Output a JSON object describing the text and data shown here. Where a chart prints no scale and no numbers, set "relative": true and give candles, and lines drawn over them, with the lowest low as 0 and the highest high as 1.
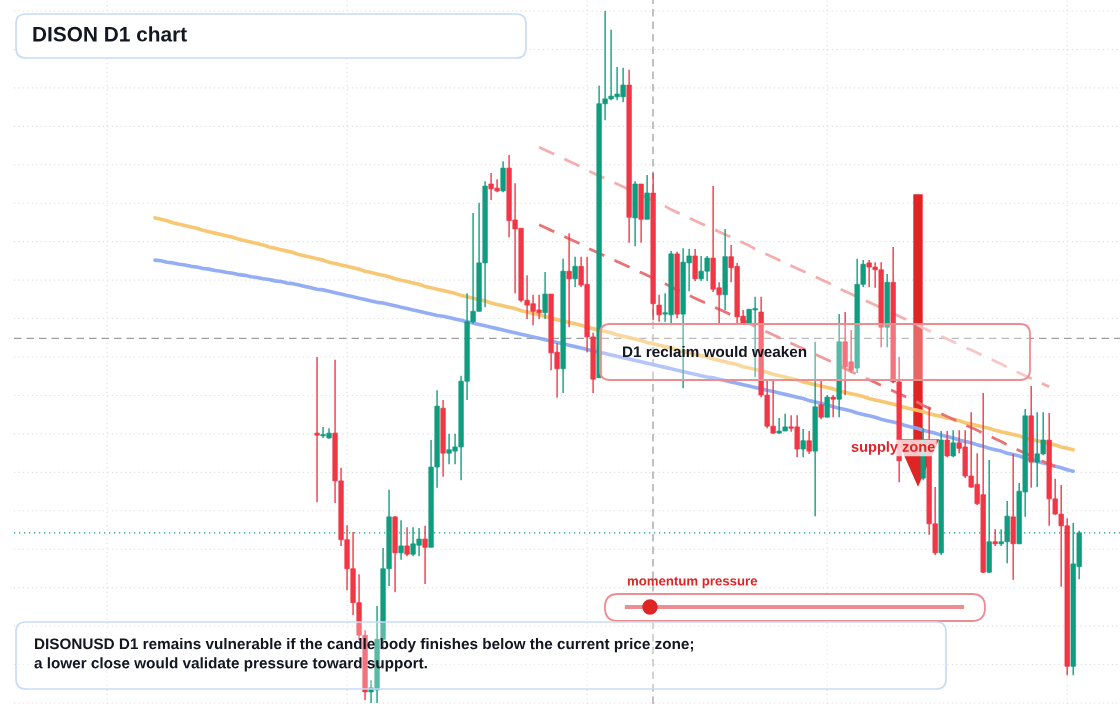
{
  "chart_data": {
    "type": "candlestick",
    "title": "DISON D1 chart",
    "relative": true,
    "grid": true,
    "categories": [
      null,
      null,
      null,
      null,
      null,
      null,
      null,
      null,
      null,
      null,
      null,
      null,
      null,
      null,
      null,
      null,
      null,
      null,
      null,
      null,
      null,
      null,
      null,
      null,
      null,
      null,
      null,
      null,
      null,
      null,
      null,
      null,
      null,
      null,
      null,
      null,
      null,
      null,
      null,
      null,
      null,
      null,
      null,
      null,
      null,
      null,
      null,
      null,
      null,
      null,
      null,
      null,
      null,
      null,
      null,
      null,
      null,
      null,
      null,
      null,
      null,
      null,
      null,
      null,
      null,
      null,
      null,
      null,
      null,
      null,
      null,
      null,
      null,
      null,
      null,
      null,
      null,
      null,
      null,
      null,
      null,
      null,
      null,
      null,
      null,
      null,
      null,
      null,
      null,
      null,
      null,
      null,
      null,
      null,
      null,
      null,
      null,
      null,
      null,
      null,
      null,
      null,
      null,
      null,
      null,
      null,
      null,
      null,
      null,
      null,
      null,
      null,
      null,
      null,
      null,
      null,
      null,
      null,
      null,
      null,
      null,
      null,
      null,
      null,
      null,
      null,
      null,
      null,
      null,
      null,
      null,
      null,
      null,
      null,
      null,
      null,
      null,
      null,
      null,
      null,
      null,
      null,
      null,
      null,
      null,
      null,
      null,
      null,
      null,
      null,
      null,
      null,
      null,
      null,
      null
    ],
    "ohlc": [
      null,
      null,
      null,
      null,
      null,
      null,
      null,
      null,
      null,
      null,
      null,
      null,
      null,
      null,
      null,
      null,
      null,
      null,
      null,
      null,
      null,
      null,
      null,
      null,
      null,
      null,
      null,
      [
        0.39,
        0.5,
        0.29,
        0.387
      ],
      [
        0.386,
        0.399,
        0.383,
        0.387
      ],
      [
        0.383,
        0.397,
        0.382,
        0.39
      ],
      [
        0.39,
        0.496,
        0.289,
        0.321
      ],
      [
        0.321,
        0.34,
        0.227,
        0.236
      ],
      [
        0.236,
        0.257,
        0.163,
        0.194
      ],
      [
        0.194,
        0.247,
        0.127,
        0.145
      ],
      [
        0.145,
        0.186,
        0.091,
        0.098
      ],
      [
        0.098,
        0.105,
        0.004,
        0.016
      ],
      [
        0.016,
        0.033,
        0.0,
        0.022
      ],
      [
        0.019,
        0.14,
        0.0,
        0.092
      ],
      [
        0.092,
        0.224,
        0.077,
        0.194
      ],
      [
        0.194,
        0.308,
        0.169,
        0.269
      ],
      [
        0.269,
        0.27,
        0.16,
        0.217
      ],
      [
        0.217,
        0.264,
        0.207,
        0.227
      ],
      [
        0.227,
        0.254,
        0.212,
        0.215
      ],
      [
        0.215,
        0.254,
        0.212,
        0.23
      ],
      [
        0.228,
        0.253,
        0.212,
        0.237
      ],
      [
        0.237,
        0.256,
        0.172,
        0.225
      ],
      [
        0.225,
        0.38,
        0.225,
        0.341
      ],
      [
        0.341,
        0.452,
        0.311,
        0.429
      ],
      [
        0.426,
        0.438,
        0.327,
        0.361
      ],
      [
        0.361,
        0.389,
        0.345,
        0.366
      ],
      [
        0.364,
        0.389,
        0.345,
        0.37
      ],
      [
        0.37,
        0.473,
        0.322,
        0.465
      ],
      [
        0.465,
        0.592,
        0.438,
        0.551
      ],
      [
        0.551,
        0.708,
        0.548,
        0.566
      ],
      [
        0.566,
        0.723,
        0.566,
        0.636
      ],
      [
        0.636,
        0.754,
        0.572,
        0.747
      ],
      [
        0.75,
        0.766,
        0.727,
        0.743
      ],
      [
        0.744,
        0.757,
        0.738,
        0.74
      ],
      [
        0.74,
        0.783,
        0.738,
        0.773
      ],
      [
        0.773,
        0.792,
        0.673,
        0.697
      ],
      [
        0.698,
        0.751,
        0.592,
        0.685
      ],
      [
        0.686,
        0.686,
        0.579,
        0.582
      ],
      [
        0.582,
        0.618,
        0.555,
        0.575
      ],
      [
        0.577,
        0.59,
        0.546,
        0.566
      ],
      [
        0.568,
        0.59,
        0.555,
        0.564
      ],
      [
        0.564,
        0.623,
        0.555,
        0.591
      ],
      [
        0.591,
        0.591,
        0.481,
        0.506
      ],
      [
        0.507,
        0.52,
        0.441,
        0.483
      ],
      [
        0.483,
        0.642,
        0.448,
        0.624
      ],
      [
        0.624,
        0.679,
        0.543,
        0.613
      ],
      [
        0.613,
        0.645,
        0.601,
        0.631
      ],
      [
        0.631,
        0.645,
        0.601,
        0.604
      ],
      [
        0.605,
        0.645,
        0.507,
        0.529
      ],
      [
        0.529,
        0.535,
        0.448,
        0.468
      ],
      [
        0.47,
        0.892,
        0.47,
        0.866
      ],
      [
        0.866,
        1.0,
        0.842,
        0.873
      ],
      [
        0.873,
        0.973,
        0.871,
        0.877
      ],
      [
        0.876,
        0.919,
        0.871,
        0.88
      ],
      [
        0.876,
        0.918,
        0.868,
        0.893
      ],
      [
        0.893,
        0.915,
        0.665,
        0.702
      ],
      [
        0.701,
        0.754,
        0.66,
        0.75
      ],
      [
        0.75,
        0.75,
        0.665,
        0.699
      ],
      [
        0.699,
        0.763,
        0.699,
        0.737
      ],
      [
        0.737,
        0.766,
        0.553,
        0.577
      ],
      [
        0.575,
        0.59,
        0.551,
        0.561
      ],
      [
        0.562,
        0.592,
        0.551,
        0.563
      ],
      [
        0.561,
        0.653,
        0.546,
        0.649
      ],
      [
        0.649,
        0.652,
        0.556,
        0.562
      ],
      [
        0.562,
        0.657,
        0.455,
        0.637
      ],
      [
        0.636,
        0.656,
        0.595,
        0.646
      ],
      [
        0.646,
        0.656,
        0.61,
        0.613
      ],
      [
        0.613,
        0.646,
        0.61,
        0.624
      ],
      [
        0.624,
        0.646,
        0.61,
        0.643
      ],
      [
        0.643,
        0.747,
        0.594,
        0.598
      ],
      [
        0.6,
        0.608,
        0.549,
        0.59
      ],
      [
        0.59,
        0.685,
        0.568,
        0.645
      ],
      [
        0.645,
        0.662,
        0.608,
        0.629
      ],
      [
        0.631,
        0.636,
        0.549,
        0.558
      ],
      [
        0.559,
        0.568,
        0.548,
        0.549
      ],
      [
        0.549,
        0.569,
        0.548,
        0.569
      ],
      [
        0.568,
        0.587,
        0.471,
        0.569
      ],
      [
        0.565,
        0.587,
        0.442,
        0.445
      ],
      [
        0.445,
        0.468,
        0.397,
        0.4
      ],
      [
        0.4,
        0.468,
        0.389,
        0.39
      ],
      [
        0.39,
        0.412,
        0.389,
        0.393
      ],
      [
        0.393,
        0.418,
        0.393,
        0.399
      ],
      [
        0.399,
        0.416,
        0.392,
        0.397
      ],
      [
        0.399,
        0.416,
        0.355,
        0.367
      ],
      [
        0.367,
        0.396,
        0.355,
        0.379
      ],
      [
        0.379,
        0.393,
        0.36,
        0.364
      ],
      [
        0.364,
        0.522,
        0.27,
        0.428
      ],
      [
        0.431,
        0.467,
        0.41,
        0.413
      ],
      [
        0.413,
        0.445,
        0.413,
        0.442
      ],
      [
        0.442,
        0.445,
        0.413,
        0.439
      ],
      [
        0.439,
        0.562,
        0.413,
        0.522
      ],
      [
        0.522,
        0.565,
        0.445,
        0.486
      ],
      [
        0.493,
        0.539,
        0.477,
        0.481
      ],
      [
        0.484,
        0.642,
        0.477,
        0.605
      ],
      [
        0.605,
        0.64,
        0.601,
        0.634
      ],
      [
        0.636,
        0.64,
        0.601,
        0.63
      ],
      [
        0.63,
        0.637,
        0.6,
        0.626
      ],
      [
        0.626,
        0.637,
        0.514,
        0.543
      ],
      [
        0.543,
        0.62,
        0.514,
        0.608
      ],
      [
        0.608,
        0.659,
        0.462,
        0.464
      ],
      [
        0.464,
        0.5,
        0.319,
        0.35
      ],
      null,
      null,
      null,
      [
        0.325,
        0.397,
        0.322,
        0.38
      ],
      [
        0.38,
        0.428,
        0.243,
        0.259
      ],
      [
        0.259,
        0.312,
        0.214,
        0.217
      ],
      [
        0.217,
        0.393,
        0.214,
        0.38
      ],
      [
        0.38,
        0.393,
        0.355,
        0.357
      ],
      [
        0.357,
        0.394,
        0.355,
        0.376
      ],
      [
        0.376,
        0.394,
        0.361,
        0.368
      ],
      [
        0.37,
        0.394,
        0.325,
        0.328
      ],
      [
        0.328,
        0.42,
        0.311,
        0.312
      ],
      [
        0.316,
        0.361,
        0.286,
        0.288
      ],
      [
        0.301,
        0.448,
        0.188,
        0.189
      ],
      [
        0.189,
        0.351,
        0.188,
        0.233
      ],
      [
        0.233,
        0.251,
        0.227,
        0.23
      ],
      [
        0.23,
        0.251,
        0.227,
        0.233
      ],
      [
        0.233,
        0.292,
        0.202,
        0.27
      ],
      [
        0.269,
        0.36,
        0.178,
        0.23
      ],
      [
        0.23,
        0.318,
        0.23,
        0.306
      ],
      [
        0.305,
        0.425,
        0.269,
        0.415
      ],
      [
        0.415,
        0.458,
        0.311,
        0.348
      ],
      [
        0.348,
        0.42,
        0.312,
        0.36
      ],
      [
        0.36,
        0.42,
        0.358,
        0.38
      ],
      [
        0.38,
        0.419,
        0.256,
        0.295
      ],
      [
        0.295,
        0.324,
        0.272,
        0.273
      ],
      [
        0.273,
        0.315,
        0.168,
        0.256
      ],
      [
        0.256,
        0.267,
        0.04,
        0.053
      ],
      [
        0.053,
        0.26,
        0.04,
        0.201
      ],
      [
        0.197,
        0.249,
        0.179,
        0.246
      ]
    ],
    "series": [
      {
        "type": "line",
        "color": "#f7c46c",
        "values": [
          0.701,
          0.699,
          0.697,
          0.694,
          0.692,
          0.69,
          0.688,
          0.686,
          0.683,
          0.681,
          0.679,
          0.677,
          0.675,
          0.673,
          0.67,
          0.668,
          0.666,
          0.664,
          0.662,
          0.659,
          0.657,
          0.655,
          0.653,
          0.651,
          0.648,
          0.646,
          0.644,
          0.642,
          0.64,
          0.637,
          0.635,
          0.633,
          0.631,
          0.629,
          0.627,
          0.624,
          0.622,
          0.62,
          0.618,
          0.616,
          0.613,
          0.611,
          0.609,
          0.607,
          0.605,
          0.602,
          0.6,
          0.598,
          0.596,
          0.594,
          0.592,
          0.589,
          0.587,
          0.585,
          0.583,
          0.581,
          0.578,
          0.576,
          0.574,
          0.572,
          0.57,
          0.567,
          0.565,
          0.563,
          0.561,
          0.559,
          0.556,
          0.554,
          0.552,
          0.55,
          0.548,
          0.546,
          0.543,
          0.541,
          0.539,
          0.537,
          0.535,
          0.532,
          0.53,
          0.528,
          0.526,
          0.524,
          0.521,
          0.519,
          0.517,
          0.515,
          0.513,
          0.51,
          0.508,
          0.506,
          0.504,
          0.502,
          0.5,
          0.497,
          0.495,
          0.493,
          0.491,
          0.489,
          0.486,
          0.484,
          0.482,
          0.48,
          0.478,
          0.475,
          0.473,
          0.471,
          0.469,
          0.467,
          0.464,
          0.462,
          0.46,
          0.458,
          0.456,
          0.454,
          0.451,
          0.449,
          0.447,
          0.445,
          0.443,
          0.44,
          0.438,
          0.436,
          0.434,
          0.432,
          0.429,
          0.427,
          0.425,
          0.423,
          0.421,
          0.418,
          0.416,
          0.414,
          0.412,
          0.41,
          0.408,
          0.405,
          0.403,
          0.401,
          0.399,
          0.397,
          0.394,
          0.392,
          0.39,
          0.388,
          0.386,
          0.383,
          0.381,
          0.379,
          0.377,
          0.375,
          0.373,
          0.37,
          0.368,
          0.366,
          null
        ]
      },
      {
        "type": "line",
        "color": "#8eaaf6",
        "values": [
          0.64,
          0.639,
          0.637,
          0.636,
          0.634,
          0.633,
          0.631,
          0.63,
          0.628,
          0.627,
          0.625,
          0.624,
          0.622,
          0.621,
          0.619,
          0.618,
          0.616,
          0.615,
          0.613,
          0.612,
          0.61,
          0.609,
          0.607,
          0.606,
          0.604,
          0.602,
          0.6,
          0.598,
          0.597,
          0.595,
          0.593,
          0.591,
          0.589,
          0.587,
          0.585,
          0.583,
          0.581,
          0.579,
          0.578,
          0.576,
          0.574,
          0.572,
          0.57,
          0.568,
          0.566,
          0.564,
          0.562,
          0.56,
          0.559,
          0.557,
          0.555,
          0.553,
          0.551,
          0.549,
          0.547,
          0.545,
          0.543,
          0.541,
          0.539,
          0.537,
          0.535,
          0.533,
          0.531,
          0.529,
          0.527,
          0.525,
          0.523,
          0.521,
          0.519,
          0.517,
          0.515,
          0.513,
          0.511,
          0.509,
          0.507,
          0.505,
          0.503,
          0.501,
          0.499,
          0.497,
          0.495,
          0.493,
          0.491,
          0.489,
          0.487,
          0.485,
          0.483,
          0.481,
          0.479,
          0.477,
          0.475,
          0.473,
          0.471,
          0.47,
          0.468,
          0.466,
          0.464,
          0.462,
          0.46,
          0.458,
          0.456,
          0.454,
          0.452,
          0.45,
          0.448,
          0.446,
          0.444,
          0.442,
          0.44,
          0.437,
          0.435,
          0.433,
          0.431,
          0.428,
          0.426,
          0.424,
          0.422,
          0.419,
          0.417,
          0.415,
          0.413,
          0.41,
          0.408,
          0.406,
          0.404,
          0.401,
          0.399,
          0.397,
          0.394,
          0.392,
          0.39,
          0.387,
          0.385,
          0.383,
          0.38,
          0.378,
          0.376,
          0.373,
          0.371,
          0.368,
          0.366,
          0.364,
          0.361,
          0.359,
          0.357,
          0.354,
          0.352,
          0.349,
          0.347,
          0.345,
          0.342,
          0.34,
          0.337,
          0.335,
          null
        ]
      },
      {
        "type": "line",
        "line_style": "dashed",
        "color": "#f4aaaa",
        "values": [
          null,
          null,
          null,
          null,
          null,
          null,
          null,
          null,
          null,
          null,
          null,
          null,
          null,
          null,
          null,
          null,
          null,
          null,
          null,
          null,
          null,
          null,
          null,
          null,
          null,
          null,
          null,
          null,
          null,
          null,
          null,
          null,
          null,
          null,
          null,
          null,
          null,
          null,
          null,
          null,
          null,
          null,
          null,
          null,
          null,
          null,
          null,
          null,
          null,
          null,
          null,
          null,
          null,
          null,
          null,
          null,
          null,
          null,
          null,
          null,
          null,
          null,
          null,
          null,
          0.803,
          0.799,
          0.795,
          0.791,
          0.787,
          0.783,
          0.779,
          0.775,
          0.77,
          0.766,
          0.762,
          0.758,
          0.754,
          0.75,
          0.746,
          0.742,
          0.738,
          0.734,
          0.73,
          0.726,
          0.722,
          0.718,
          0.713,
          0.709,
          0.705,
          0.701,
          0.697,
          0.693,
          0.689,
          0.685,
          0.681,
          0.677,
          0.673,
          0.669,
          0.665,
          0.661,
          0.656,
          0.652,
          0.648,
          0.644,
          0.64,
          0.636,
          0.632,
          0.628,
          0.624,
          0.62,
          0.616,
          0.612,
          0.608,
          0.604,
          0.599,
          0.595,
          0.591,
          0.587,
          0.583,
          0.579,
          0.575,
          0.571,
          0.567,
          0.563,
          0.559,
          0.555,
          0.551,
          0.547,
          0.542,
          0.538,
          0.534,
          0.53,
          0.526,
          0.522,
          0.518,
          0.514,
          0.51,
          0.506,
          0.502,
          0.498,
          0.494,
          0.49,
          0.485,
          0.481,
          0.477,
          0.473,
          0.469,
          0.465,
          0.461,
          0.457,
          null,
          null,
          null,
          null,
          null
        ]
      },
      {
        "type": "line",
        "line_style": "dashed",
        "color": "#e86a6e",
        "values": [
          null,
          null,
          null,
          null,
          null,
          null,
          null,
          null,
          null,
          null,
          null,
          null,
          null,
          null,
          null,
          null,
          null,
          null,
          null,
          null,
          null,
          null,
          null,
          null,
          null,
          null,
          null,
          null,
          null,
          null,
          null,
          null,
          null,
          null,
          null,
          null,
          null,
          null,
          null,
          null,
          null,
          null,
          null,
          null,
          null,
          null,
          null,
          null,
          null,
          null,
          null,
          null,
          null,
          null,
          null,
          null,
          null,
          null,
          null,
          null,
          null,
          null,
          null,
          null,
          0.691,
          0.687,
          0.683,
          0.679,
          0.675,
          0.671,
          0.667,
          0.663,
          0.658,
          0.654,
          0.65,
          0.646,
          0.642,
          0.638,
          0.634,
          0.63,
          0.626,
          0.622,
          0.618,
          0.614,
          0.61,
          0.606,
          0.601,
          0.597,
          0.593,
          0.589,
          0.585,
          0.581,
          0.577,
          0.573,
          0.569,
          0.565,
          0.561,
          0.557,
          0.553,
          0.549,
          0.544,
          0.54,
          0.536,
          0.532,
          0.528,
          0.524,
          0.52,
          0.516,
          0.512,
          0.508,
          0.504,
          0.5,
          0.496,
          0.492,
          0.487,
          0.483,
          0.479,
          0.475,
          0.471,
          0.467,
          0.463,
          0.459,
          0.455,
          0.451,
          0.447,
          0.443,
          0.439,
          0.435,
          0.43,
          0.426,
          0.422,
          0.418,
          0.414,
          0.41,
          0.406,
          0.402,
          0.398,
          0.394,
          0.39,
          0.386,
          0.382,
          0.378,
          0.373,
          0.369,
          0.365,
          0.361,
          0.357,
          0.353,
          0.349,
          0.345,
          0.342,
          null,
          null,
          null,
          null
        ]
      }
    ],
    "ref_lines": [
      {
        "axis": "y",
        "value": 0.527,
        "color": "#9e9e9e",
        "line_style": "dashed"
      },
      {
        "axis": "y",
        "value": 0.246,
        "color": "#0f9d80",
        "line_style": "dotted"
      }
    ],
    "annotations": [
      "D1 reclaim would weaken",
      "supply zone",
      "momentum pressure",
      "DISONUSD D1 remains vulnerable if the candle body finishes below the current price zone; a lower close would validate pressure toward support."
    ]
  }
}
